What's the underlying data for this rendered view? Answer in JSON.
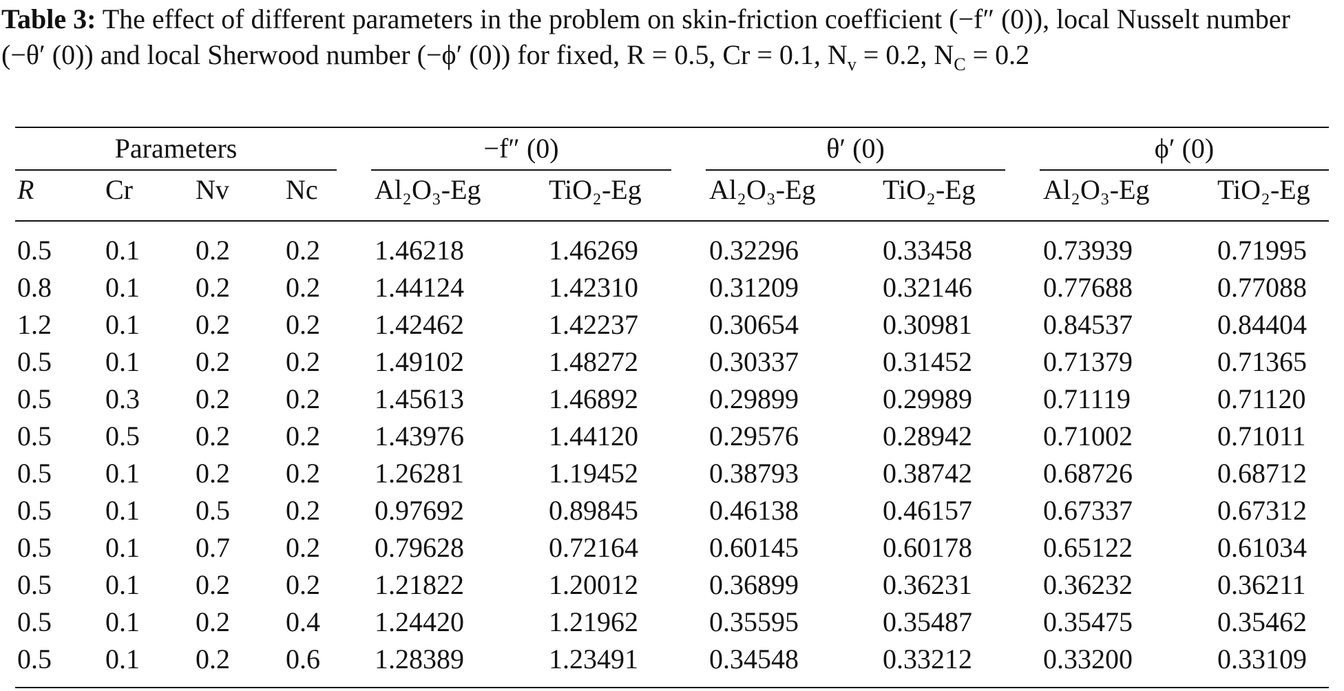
{
  "caption": {
    "label": "Table 3:",
    "parts": [
      "The effect of different parameters in the problem on skin-friction coefficient (−f″ (0)), local Nusselt number (−θ′ (0)) and local Sherwood number (−ϕ′ (0)) for fixed, R = 0.5, Cr = 0.1, N",
      {
        "sub": "v"
      },
      " = 0.2, N",
      {
        "sub": "C"
      },
      " = 0.2"
    ]
  },
  "table": {
    "groups": [
      "Parameters",
      "−f″ (0)",
      "θ′ (0)",
      "ϕ′ (0)"
    ],
    "columns": [
      "R",
      "Cr",
      "Nv",
      "Nc",
      "Al₂O₃-Eg",
      "TiO₂-Eg",
      "Al₂O₃-Eg",
      "TiO₂-Eg",
      "Al₂O₃-Eg",
      "TiO₂-Eg"
    ],
    "rows": [
      [
        "0.5",
        "0.1",
        "0.2",
        "0.2",
        "1.46218",
        "1.46269",
        "0.32296",
        "0.33458",
        "0.73939",
        "0.71995"
      ],
      [
        "0.8",
        "0.1",
        "0.2",
        "0.2",
        "1.44124",
        "1.42310",
        "0.31209",
        "0.32146",
        "0.77688",
        "0.77088"
      ],
      [
        "1.2",
        "0.1",
        "0.2",
        "0.2",
        "1.42462",
        "1.42237",
        "0.30654",
        "0.30981",
        "0.84537",
        "0.84404"
      ],
      [
        "0.5",
        "0.1",
        "0.2",
        "0.2",
        "1.49102",
        "1.48272",
        "0.30337",
        "0.31452",
        "0.71379",
        "0.71365"
      ],
      [
        "0.5",
        "0.3",
        "0.2",
        "0.2",
        "1.45613",
        "1.46892",
        "0.29899",
        "0.29989",
        "0.71119",
        "0.71120"
      ],
      [
        "0.5",
        "0.5",
        "0.2",
        "0.2",
        "1.43976",
        "1.44120",
        "0.29576",
        "0.28942",
        "0.71002",
        "0.71011"
      ],
      [
        "0.5",
        "0.1",
        "0.2",
        "0.2",
        "1.26281",
        "1.19452",
        "0.38793",
        "0.38742",
        "0.68726",
        "0.68712"
      ],
      [
        "0.5",
        "0.1",
        "0.5",
        "0.2",
        "0.97692",
        "0.89845",
        "0.46138",
        "0.46157",
        "0.67337",
        "0.67312"
      ],
      [
        "0.5",
        "0.1",
        "0.7",
        "0.2",
        "0.79628",
        "0.72164",
        "0.60145",
        "0.60178",
        "0.65122",
        "0.61034"
      ],
      [
        "0.5",
        "0.1",
        "0.2",
        "0.2",
        "1.21822",
        "1.20012",
        "0.36899",
        "0.36231",
        "0.36232",
        "0.36211"
      ],
      [
        "0.5",
        "0.1",
        "0.2",
        "0.4",
        "1.24420",
        "1.21962",
        "0.35595",
        "0.35487",
        "0.35475",
        "0.35462"
      ],
      [
        "0.5",
        "0.1",
        "0.2",
        "0.6",
        "1.28389",
        "1.23491",
        "0.34548",
        "0.33212",
        "0.33200",
        "0.33109"
      ]
    ]
  }
}
